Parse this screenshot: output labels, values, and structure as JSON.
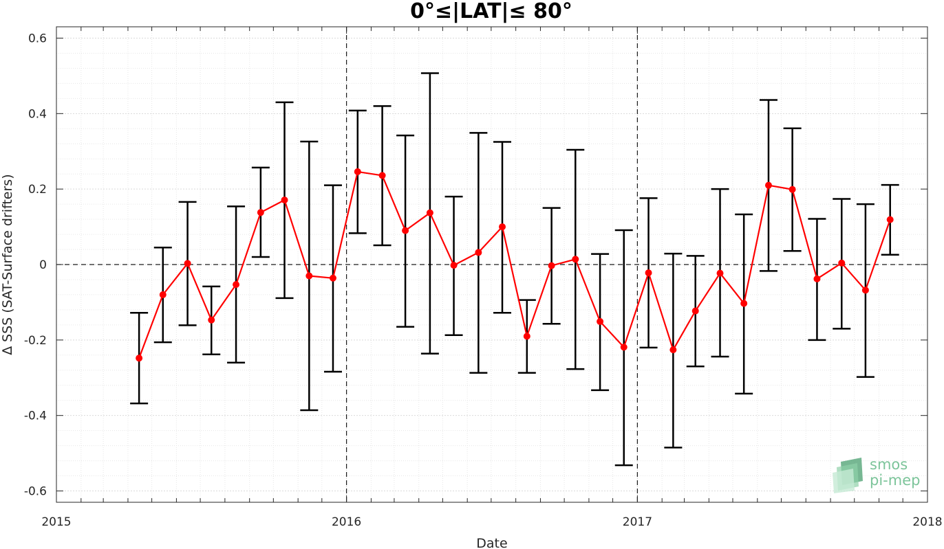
{
  "chart_data": {
    "type": "line",
    "title": "0°≤|LAT|≤ 80°",
    "xlabel": "Date",
    "ylabel": "∆ SSS (SAT-Surface drifters)",
    "xlim": [
      "2015-01-01",
      "2018-01-01"
    ],
    "ylim": [
      -0.63,
      0.63
    ],
    "x_ticks": [
      "2015",
      "2016",
      "2017",
      "2018"
    ],
    "y_ticks": [
      "-0.6",
      "-0.4",
      "-0.2",
      "0",
      "0.2",
      "0.4",
      "0.6"
    ],
    "grid": true,
    "minor_grid": true,
    "reference_lines": {
      "horizontal": [
        0
      ],
      "vertical": [
        "2016-01-01",
        "2017-01-01"
      ]
    },
    "line_color": "#ff0000",
    "errorbar_color": "#000000",
    "series": [
      {
        "x": [
          "2015-04-15",
          "2015-05-15",
          "2015-06-15",
          "2015-07-15",
          "2015-08-15",
          "2015-09-15",
          "2015-10-15",
          "2015-11-15",
          "2015-12-15",
          "2016-01-15",
          "2016-02-15",
          "2016-03-15",
          "2016-04-15",
          "2016-05-15",
          "2016-06-15",
          "2016-07-15",
          "2016-08-15",
          "2016-09-15",
          "2016-10-15",
          "2016-11-15",
          "2016-12-15",
          "2017-01-15",
          "2017-02-15",
          "2017-03-15",
          "2017-04-15",
          "2017-05-15",
          "2017-06-15",
          "2017-07-15",
          "2017-08-15",
          "2017-09-15",
          "2017-10-15",
          "2017-11-15"
        ],
        "y": [
          -0.248,
          -0.08,
          0.003,
          -0.147,
          -0.053,
          0.138,
          0.171,
          -0.03,
          -0.036,
          0.246,
          0.236,
          0.09,
          0.137,
          -0.002,
          0.032,
          0.1,
          -0.19,
          -0.003,
          0.014,
          -0.151,
          -0.219,
          -0.022,
          -0.226,
          -0.123,
          -0.023,
          -0.103,
          0.21,
          0.199,
          -0.038,
          0.004,
          -0.068,
          0.119
        ],
        "lower": [
          -0.368,
          -0.206,
          -0.161,
          -0.238,
          -0.26,
          0.02,
          -0.089,
          -0.386,
          -0.284,
          0.083,
          0.051,
          -0.165,
          -0.236,
          -0.187,
          -0.287,
          -0.128,
          -0.287,
          -0.157,
          -0.277,
          -0.333,
          -0.532,
          -0.22,
          -0.485,
          -0.27,
          -0.244,
          -0.342,
          -0.017,
          0.036,
          -0.2,
          -0.17,
          -0.298,
          0.026
        ],
        "upper": [
          -0.128,
          0.045,
          0.166,
          -0.058,
          0.154,
          0.257,
          0.43,
          0.326,
          0.21,
          0.408,
          0.42,
          0.342,
          0.507,
          0.18,
          0.349,
          0.325,
          -0.094,
          0.15,
          0.304,
          0.028,
          0.091,
          0.176,
          0.029,
          0.023,
          0.2,
          0.133,
          0.436,
          0.361,
          0.121,
          0.174,
          0.16,
          0.211
        ]
      }
    ]
  },
  "logo": {
    "line1": "smos",
    "line2": "pi-mep",
    "color": "#7cc49a"
  }
}
